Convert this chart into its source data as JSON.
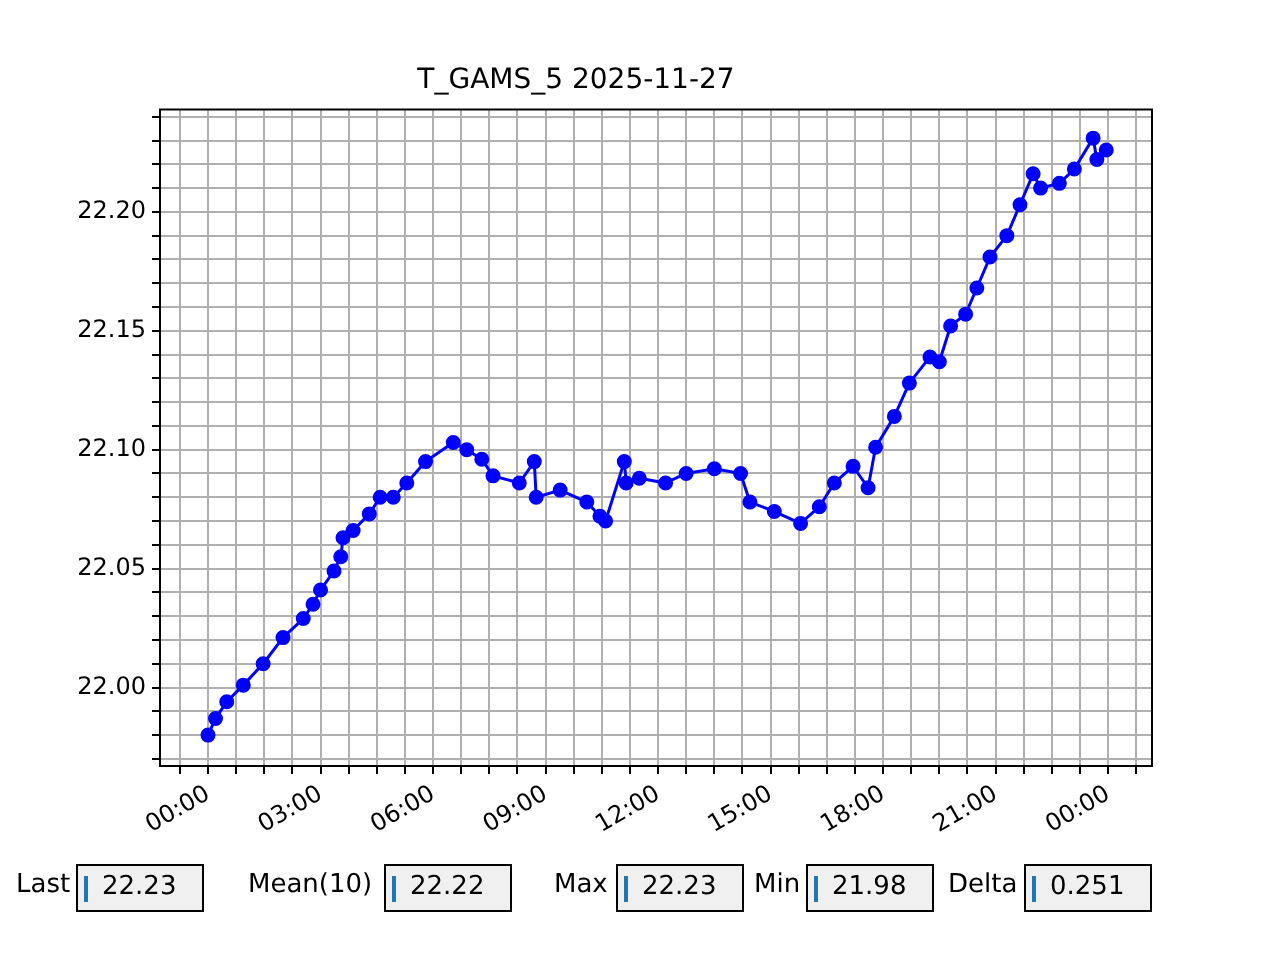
{
  "chart_data": {
    "type": "line",
    "title": "T_GAMS_5 2025-11-27",
    "x": [
      0,
      0.2,
      0.5,
      0.94,
      1.47,
      2.0,
      2.54,
      2.8,
      3.0,
      3.36,
      3.54,
      3.6,
      3.87,
      4.3,
      4.59,
      4.94,
      5.3,
      5.8,
      6.54,
      6.9,
      7.3,
      7.6,
      8.3,
      8.7,
      8.75,
      9.39,
      10.1,
      10.45,
      10.6,
      11.1,
      11.15,
      11.5,
      12.2,
      12.75,
      13.5,
      14.2,
      14.45,
      15.1,
      15.8,
      16.3,
      16.7,
      17.2,
      17.6,
      17.8,
      18.3,
      18.7,
      19.25,
      19.5,
      19.8,
      20.2,
      20.5,
      20.85,
      21.3,
      21.65,
      22.0,
      22.2,
      22.7,
      23.1,
      23.6,
      23.7,
      23.95
    ],
    "series": [
      {
        "color": "#0000ff",
        "values": [
          21.98,
          21.987,
          21.994,
          22.001,
          22.01,
          22.021,
          22.029,
          22.035,
          22.041,
          22.049,
          22.055,
          22.063,
          22.066,
          22.073,
          22.08,
          22.08,
          22.086,
          22.095,
          22.103,
          22.1,
          22.096,
          22.089,
          22.086,
          22.095,
          22.08,
          22.083,
          22.078,
          22.072,
          22.07,
          22.095,
          22.086,
          22.088,
          22.086,
          22.09,
          22.092,
          22.09,
          22.078,
          22.074,
          22.069,
          22.076,
          22.086,
          22.093,
          22.084,
          22.101,
          22.114,
          22.128,
          22.139,
          22.137,
          22.152,
          22.157,
          22.168,
          22.181,
          22.19,
          22.203,
          22.216,
          22.21,
          22.212,
          22.218,
          22.231,
          22.222,
          22.226
        ]
      }
    ],
    "xlim": [
      -1.28,
      25.17
    ],
    "ylim": [
      21.967,
      22.243
    ],
    "xticks": [
      {
        "value": -0.75,
        "label": null
      },
      {
        "value": 0,
        "label": "00:00"
      },
      {
        "value": 0.75,
        "label": null
      },
      {
        "value": 1.5,
        "label": null
      },
      {
        "value": 2.25,
        "label": null
      },
      {
        "value": 3,
        "label": "03:00"
      },
      {
        "value": 3.75,
        "label": null
      },
      {
        "value": 4.5,
        "label": null
      },
      {
        "value": 5.25,
        "label": null
      },
      {
        "value": 6,
        "label": "06:00"
      },
      {
        "value": 6.75,
        "label": null
      },
      {
        "value": 7.5,
        "label": null
      },
      {
        "value": 8.25,
        "label": null
      },
      {
        "value": 9,
        "label": "09:00"
      },
      {
        "value": 9.75,
        "label": null
      },
      {
        "value": 10.5,
        "label": null
      },
      {
        "value": 11.25,
        "label": null
      },
      {
        "value": 12,
        "label": "12:00"
      },
      {
        "value": 12.75,
        "label": null
      },
      {
        "value": 13.5,
        "label": null
      },
      {
        "value": 14.25,
        "label": null
      },
      {
        "value": 15,
        "label": "15:00"
      },
      {
        "value": 15.75,
        "label": null
      },
      {
        "value": 16.5,
        "label": null
      },
      {
        "value": 17.25,
        "label": null
      },
      {
        "value": 18,
        "label": "18:00"
      },
      {
        "value": 18.75,
        "label": null
      },
      {
        "value": 19.5,
        "label": null
      },
      {
        "value": 20.25,
        "label": null
      },
      {
        "value": 21,
        "label": "21:00"
      },
      {
        "value": 21.75,
        "label": null
      },
      {
        "value": 22.5,
        "label": null
      },
      {
        "value": 23.25,
        "label": null
      },
      {
        "value": 24,
        "label": "00:00"
      },
      {
        "value": 24.75,
        "label": null
      }
    ],
    "yticks": [
      {
        "value": 21.97,
        "label": null
      },
      {
        "value": 21.98,
        "label": null
      },
      {
        "value": 21.99,
        "label": null
      },
      {
        "value": 22.0,
        "label": "22.00"
      },
      {
        "value": 22.01,
        "label": null
      },
      {
        "value": 22.02,
        "label": null
      },
      {
        "value": 22.03,
        "label": null
      },
      {
        "value": 22.04,
        "label": null
      },
      {
        "value": 22.05,
        "label": "22.05"
      },
      {
        "value": 22.06,
        "label": null
      },
      {
        "value": 22.07,
        "label": null
      },
      {
        "value": 22.08,
        "label": null
      },
      {
        "value": 22.09,
        "label": null
      },
      {
        "value": 22.1,
        "label": "22.10"
      },
      {
        "value": 22.11,
        "label": null
      },
      {
        "value": 22.12,
        "label": null
      },
      {
        "value": 22.13,
        "label": null
      },
      {
        "value": 22.14,
        "label": null
      },
      {
        "value": 22.15,
        "label": "22.15"
      },
      {
        "value": 22.16,
        "label": null
      },
      {
        "value": 22.17,
        "label": null
      },
      {
        "value": 22.18,
        "label": null
      },
      {
        "value": 22.19,
        "label": null
      },
      {
        "value": 22.2,
        "label": "22.20"
      },
      {
        "value": 22.21,
        "label": null
      },
      {
        "value": 22.22,
        "label": null
      },
      {
        "value": 22.23,
        "label": null
      },
      {
        "value": 22.24,
        "label": null
      }
    ],
    "grid": true,
    "legend": false,
    "marker": "circle",
    "line_style": "solid",
    "annotations": [
      "Last",
      "22.23",
      "Mean(10)",
      "22.22",
      "Max",
      "22.23",
      "Min",
      "21.98",
      "Delta",
      "0.251"
    ]
  }
}
